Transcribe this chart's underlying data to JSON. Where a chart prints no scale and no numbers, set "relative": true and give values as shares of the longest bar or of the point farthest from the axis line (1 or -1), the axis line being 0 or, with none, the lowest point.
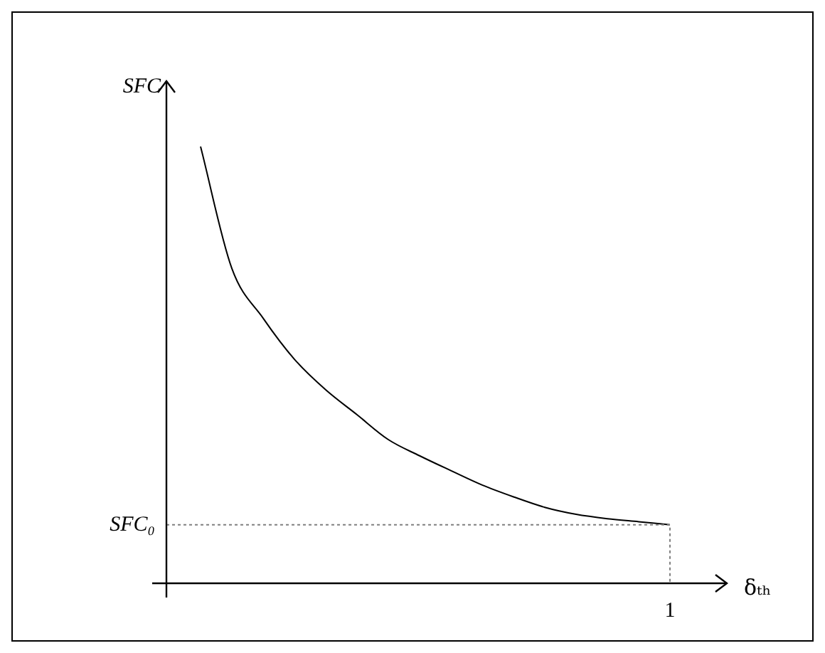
{
  "chart_data": {
    "type": "line",
    "relative": true,
    "xlabel": "δₜₕ",
    "ylabel": "SFC",
    "categories": [
      null,
      null,
      null,
      null,
      null,
      null,
      null,
      null,
      null,
      null,
      null,
      null,
      null,
      null,
      null,
      null
    ],
    "series": [
      {
        "color": "#000000",
        "values": [
          1.0,
          0.721,
          0.607,
          0.513,
          0.443,
          0.386,
          0.329,
          0.292,
          0.258,
          0.225,
          0.198,
          0.174,
          0.158,
          0.148,
          0.141,
          0.134
        ]
      }
    ],
    "annotations": [
      "1"
    ],
    "ref_lines": [
      {
        "axis": "y",
        "value": 0.134,
        "label": "SFC₀",
        "color": "#808080",
        "line_style": "dotted"
      }
    ],
    "legend": false,
    "marker": "none",
    "line_style": "solid"
  }
}
